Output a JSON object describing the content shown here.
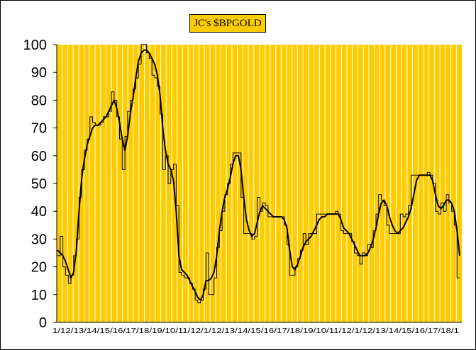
{
  "chart_data": {
    "type": "line",
    "title": "JC's $BPGOLD",
    "xlabel": "",
    "ylabel": "",
    "ylim": [
      0,
      100
    ],
    "y_ticks": [
      0,
      10,
      20,
      30,
      40,
      50,
      60,
      70,
      80,
      90,
      100
    ],
    "grid": "vertical",
    "legend": "none",
    "colors": {
      "plot_background": "#ffcc00",
      "grid": "#ffffff",
      "series": "#000000"
    },
    "x_tick_labels": [
      "1/12",
      "13",
      "14",
      "15",
      "16",
      "17",
      "18",
      "19",
      "1/10",
      "11",
      "12",
      "1/1",
      "12",
      "13",
      "14",
      "15",
      "16",
      "17",
      "18",
      "19",
      "1/10",
      "11",
      "12",
      "1/1",
      "12",
      "13",
      "14",
      "15",
      "16",
      "17",
      "18",
      "1/1"
    ],
    "x_tick_label_text": "1/12/13/14/15/16/17/18/19/10/11/12/1/12/13/14/15/16/17/18/19/10/11/12/1/12/13/14/15/16/17/18/1",
    "series": [
      {
        "values": [
          24,
          31,
          20,
          17,
          14,
          17,
          24,
          30,
          45,
          55,
          62,
          66,
          74,
          72,
          71,
          71,
          72,
          74,
          74,
          76,
          83,
          80,
          74,
          66,
          55,
          67,
          76,
          80,
          84,
          88,
          93,
          100,
          100,
          97,
          95,
          89,
          88,
          85,
          75,
          55,
          60,
          50,
          55,
          57,
          42,
          18,
          17,
          16,
          16,
          14,
          12,
          8,
          7,
          8,
          12,
          25,
          10,
          10,
          16,
          27,
          33,
          40,
          46,
          50,
          57,
          61,
          61,
          61,
          45,
          32,
          32,
          32,
          30,
          31,
          45,
          40,
          43,
          42,
          38,
          38,
          38,
          38,
          38,
          38,
          35,
          28,
          17,
          17,
          20,
          23,
          26,
          32,
          28,
          32,
          32,
          32,
          39,
          39,
          39,
          39,
          39,
          39,
          39,
          40,
          39,
          33,
          32,
          32,
          32,
          29,
          25,
          24,
          21,
          25,
          24,
          28,
          27,
          33,
          39,
          46,
          44,
          42,
          35,
          32,
          32,
          32,
          32,
          39,
          38,
          39,
          42,
          53,
          53,
          53,
          53,
          53,
          53,
          54,
          53,
          50,
          40,
          39,
          43,
          40,
          46,
          43,
          40,
          35,
          16,
          16
        ]
      },
      {
        "values": [
          26,
          25,
          24,
          22,
          19,
          16,
          18,
          26,
          40,
          52,
          59,
          64,
          67,
          70,
          71,
          71,
          72,
          73,
          74,
          76,
          78,
          80,
          77,
          72,
          66,
          62,
          67,
          75,
          81,
          88,
          94,
          97,
          98,
          98,
          97,
          95,
          93,
          89,
          82,
          70,
          62,
          57,
          55,
          51,
          40,
          24,
          19,
          18,
          17,
          15,
          13,
          11,
          9,
          8,
          10,
          15,
          15,
          16,
          18,
          24,
          33,
          40,
          45,
          48,
          52,
          57,
          60,
          60,
          55,
          45,
          37,
          33,
          31,
          32,
          36,
          40,
          42,
          41,
          40,
          39,
          38,
          38,
          38,
          38,
          37,
          34,
          26,
          20,
          19,
          21,
          24,
          27,
          29,
          30,
          31,
          33,
          35,
          37,
          38,
          38,
          39,
          39,
          39,
          39,
          39,
          37,
          34,
          33,
          32,
          30,
          28,
          26,
          24,
          24,
          24,
          25,
          27,
          30,
          34,
          39,
          43,
          44,
          42,
          38,
          35,
          33,
          32,
          33,
          34,
          36,
          38,
          41,
          46,
          51,
          53,
          53,
          53,
          53,
          53,
          51,
          46,
          42,
          41,
          42,
          44,
          44,
          43,
          40,
          33,
          24
        ]
      }
    ]
  }
}
